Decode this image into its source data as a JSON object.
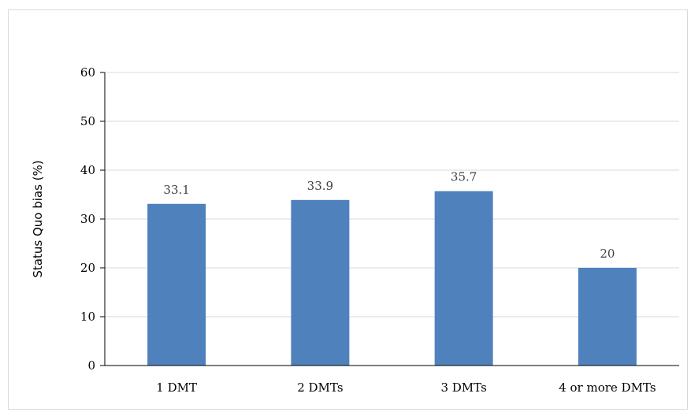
{
  "chart_data": {
    "type": "bar",
    "title": "",
    "xlabel": "",
    "ylabel": "Status Quo bias (%)",
    "categories": [
      "1 DMT",
      "2 DMTs",
      "3 DMTs",
      "4 or more DMTs"
    ],
    "values": [
      33.1,
      33.9,
      35.7,
      20
    ],
    "data_labels": [
      "33.1",
      "33.9",
      "35.7",
      "20"
    ],
    "ylim": [
      0,
      60
    ],
    "yticks": [
      0,
      10,
      20,
      30,
      40,
      50,
      60
    ],
    "grid": true,
    "legend": "none",
    "colors": {
      "bar": "#4f81bd",
      "grid": "#d9d9d9",
      "axis": "#000000",
      "data_label": "#404040"
    }
  }
}
